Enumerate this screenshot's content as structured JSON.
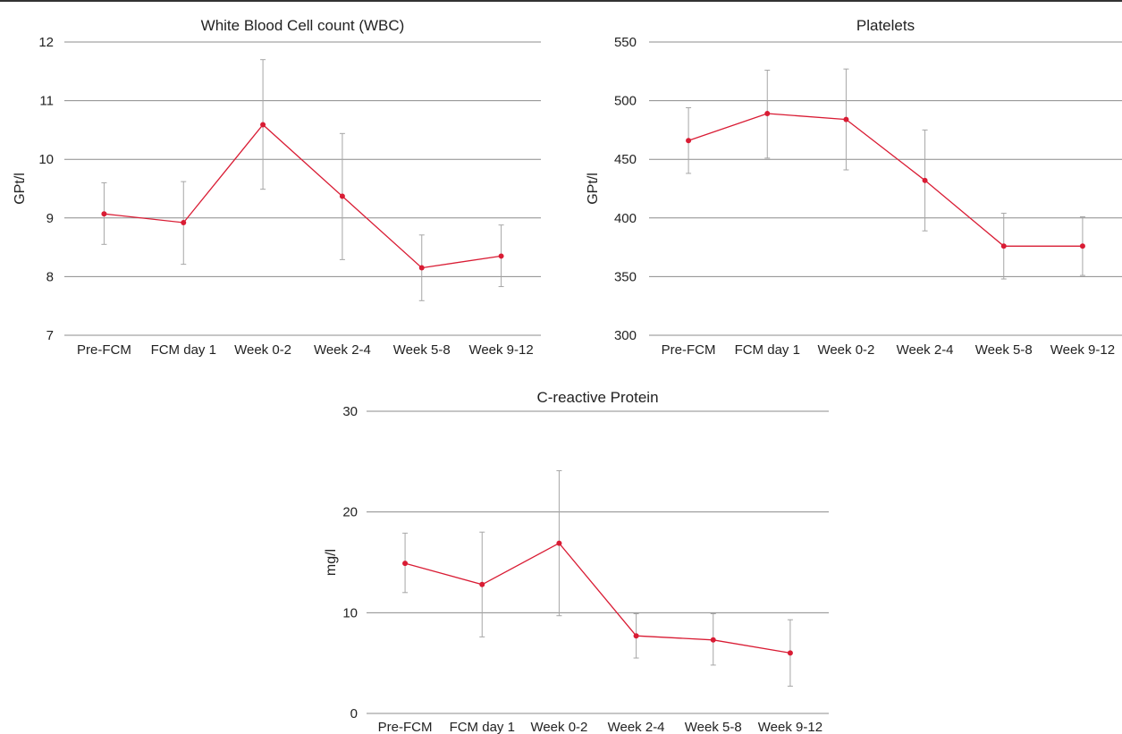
{
  "colors": {
    "line": "#d91c34",
    "errorbar": "#a6a6a6",
    "grid": "#8c8c8c"
  },
  "chart_data": [
    {
      "type": "line",
      "title": "White Blood Cell count (WBC)",
      "ylabel": "GPt/l",
      "xlabel": "",
      "categories": [
        "Pre-FCM",
        "FCM day 1",
        "Week 0-2",
        "Week 2-4",
        "Week 5-8",
        "Week 9-12"
      ],
      "ylim": [
        7,
        12
      ],
      "yticks": [
        7,
        8,
        9,
        10,
        11,
        12
      ],
      "grid": true,
      "error_bars": true,
      "series": [
        {
          "values": [
            9.07,
            8.92,
            10.59,
            9.37,
            8.15,
            8.35
          ],
          "error_low": [
            8.55,
            8.21,
            9.49,
            8.29,
            7.59,
            7.83
          ],
          "error_high": [
            9.6,
            9.62,
            11.7,
            10.44,
            8.71,
            8.88
          ]
        }
      ]
    },
    {
      "type": "line",
      "title": "Platelets",
      "ylabel": "GPt/l",
      "xlabel": "",
      "categories": [
        "Pre-FCM",
        "FCM day 1",
        "Week 0-2",
        "Week 2-4",
        "Week 5-8",
        "Week 9-12"
      ],
      "ylim": [
        300,
        550
      ],
      "yticks": [
        300,
        350,
        400,
        450,
        500,
        550
      ],
      "grid": true,
      "error_bars": true,
      "series": [
        {
          "values": [
            466,
            489,
            484,
            432,
            376,
            376
          ],
          "error_low": [
            438,
            451,
            441,
            389,
            348,
            351
          ],
          "error_high": [
            494,
            526,
            527,
            475,
            404,
            401
          ]
        }
      ]
    },
    {
      "type": "line",
      "title": "C-reactive Protein",
      "ylabel": "mg/l",
      "xlabel": "",
      "categories": [
        "Pre-FCM",
        "FCM day 1",
        "Week 0-2",
        "Week 2-4",
        "Week 5-8",
        "Week 9-12"
      ],
      "ylim": [
        0,
        30
      ],
      "yticks": [
        0,
        10,
        20,
        30
      ],
      "grid": true,
      "error_bars": true,
      "series": [
        {
          "values": [
            14.9,
            12.8,
            16.9,
            7.7,
            7.3,
            6.0
          ],
          "error_low": [
            12.0,
            7.6,
            9.7,
            5.5,
            4.8,
            2.7
          ],
          "error_high": [
            17.9,
            18.0,
            24.1,
            9.9,
            9.9,
            9.3
          ]
        }
      ]
    }
  ]
}
